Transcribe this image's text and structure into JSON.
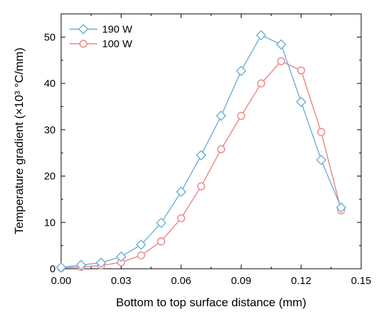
{
  "chart_data": {
    "type": "line",
    "xlabel": "Bottom to top surface distance (mm)",
    "ylabel": "Temperature gradient (×10³ °C/mm)",
    "xlim": [
      0,
      0.15
    ],
    "ylim": [
      0,
      55
    ],
    "xticks": [
      "0.00",
      "0.03",
      "0.06",
      "0.09",
      "0.12",
      "0.15"
    ],
    "yticks": [
      "0",
      "10",
      "20",
      "30",
      "40",
      "50"
    ],
    "x": [
      0.0,
      0.01,
      0.02,
      0.03,
      0.04,
      0.05,
      0.06,
      0.07,
      0.08,
      0.09,
      0.1,
      0.11,
      0.12,
      0.13,
      0.14
    ],
    "legend_position": "top-left",
    "grid": false,
    "series": [
      {
        "name": "190 W",
        "color": "#6baed6",
        "marker": "diamond",
        "values": [
          0.3,
          0.8,
          1.3,
          2.6,
          5.2,
          9.9,
          16.6,
          24.5,
          33.0,
          42.7,
          50.4,
          48.4,
          36.0,
          23.5,
          13.2
        ]
      },
      {
        "name": "100 W",
        "color": "#f08080",
        "marker": "circle",
        "values": [
          0.2,
          0.4,
          0.7,
          1.4,
          2.9,
          5.9,
          10.9,
          17.8,
          25.8,
          33.0,
          40.0,
          44.8,
          42.8,
          29.5,
          12.6
        ]
      }
    ]
  }
}
